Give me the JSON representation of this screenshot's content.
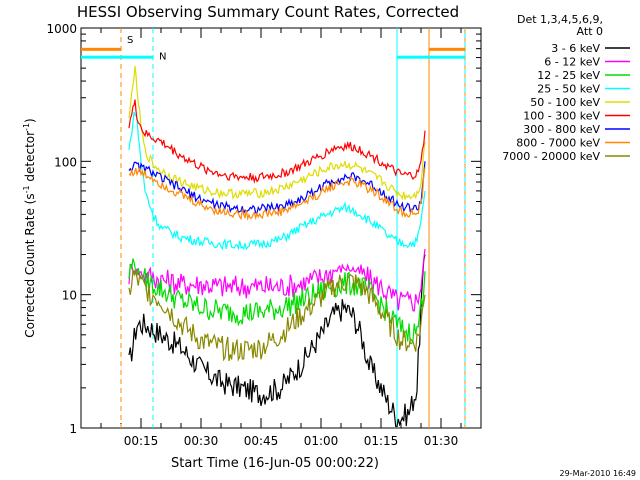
{
  "chart_data": {
    "type": "line",
    "title": "HESSI Observing Summary Count Rates, Corrected",
    "xlabel": "Start Time (16-Jun-05 00:00:22)",
    "ylabel_main": "Corrected Count Rate (s",
    "ylabel_sup1": "-1",
    "ylabel_mid": " detector",
    "ylabel_sup2": "-1",
    "ylabel_end": ")",
    "y_scale": "log",
    "ylim": [
      1,
      1000
    ],
    "xlim_minutes": [
      0,
      100
    ],
    "y_ticks": [
      "1",
      "10",
      "100",
      "1000"
    ],
    "x_ticks": [
      {
        "label": "00:15",
        "minute": 15
      },
      {
        "label": "00:30",
        "minute": 30
      },
      {
        "label": "00:45",
        "minute": 45
      },
      {
        "label": "01:00",
        "minute": 60
      },
      {
        "label": "01:15",
        "minute": 75
      },
      {
        "label": "01:30",
        "minute": 90
      }
    ],
    "legend_header": [
      "Det 1,3,4,5,6,9,",
      "Att 0"
    ],
    "legend_position": "right",
    "series": [
      {
        "name": "3 - 6 keV",
        "color": "#000000",
        "x": [
          12,
          14,
          16,
          20,
          25,
          30,
          35,
          40,
          45,
          50,
          55,
          60,
          63,
          66,
          68,
          70,
          72,
          75,
          77,
          79,
          80,
          82,
          84,
          85,
          86
        ],
        "y": [
          3,
          6,
          6,
          5,
          4,
          2.8,
          2.2,
          2,
          1.8,
          2,
          3,
          5,
          7,
          8,
          7,
          5,
          3,
          2,
          1.5,
          1.2,
          1.2,
          1.3,
          2,
          8,
          20
        ]
      },
      {
        "name": "6 - 12 keV",
        "color": "#ff00ff",
        "x": [
          12,
          13,
          14,
          16,
          20,
          25,
          30,
          35,
          40,
          45,
          50,
          55,
          60,
          63,
          66,
          68,
          70,
          72,
          75,
          77,
          79,
          80,
          82,
          84,
          85,
          86
        ],
        "y": [
          14,
          16,
          15,
          14,
          13,
          12,
          12,
          11.5,
          11.5,
          11.5,
          11.5,
          12,
          13.5,
          15,
          16,
          15.5,
          14.5,
          13,
          11.5,
          10,
          9,
          9,
          8.8,
          9,
          12,
          22
        ]
      },
      {
        "name": "12 - 25 keV",
        "color": "#00dd00",
        "x": [
          12,
          13,
          14,
          16,
          20,
          25,
          30,
          35,
          40,
          45,
          50,
          55,
          60,
          63,
          66,
          68,
          70,
          72,
          75,
          77,
          79,
          80,
          82,
          84,
          85,
          86
        ],
        "y": [
          14,
          18,
          15,
          13,
          11,
          9,
          8,
          7.5,
          7.3,
          7.4,
          8,
          9,
          10.5,
          11.5,
          12,
          12,
          11.5,
          10.5,
          8.5,
          7,
          6,
          5.5,
          5.2,
          5.3,
          8,
          15
        ]
      },
      {
        "name": "25 - 50 keV",
        "color": "#00ffff",
        "x": [
          12,
          13,
          13.5,
          14,
          15,
          16,
          18,
          20,
          25,
          30,
          35,
          40,
          45,
          50,
          55,
          60,
          63,
          66,
          68,
          70,
          72,
          75,
          77,
          79,
          80,
          82,
          84,
          85,
          86
        ],
        "y": [
          120,
          200,
          240,
          200,
          100,
          60,
          40,
          32,
          27,
          25,
          24,
          23.5,
          24,
          26,
          32,
          38,
          42,
          45,
          43,
          40,
          36,
          31,
          27,
          25,
          24.5,
          24,
          25,
          35,
          60
        ]
      },
      {
        "name": "50 - 100 keV",
        "color": "#dddd00",
        "x": [
          12,
          13,
          13.5,
          14,
          15,
          16,
          18,
          20,
          25,
          30,
          35,
          40,
          45,
          50,
          55,
          60,
          63,
          66,
          68,
          70,
          72,
          75,
          77,
          79,
          80,
          82,
          84,
          85,
          86
        ],
        "y": [
          200,
          400,
          480,
          350,
          180,
          120,
          95,
          85,
          70,
          62,
          58,
          57,
          58,
          62,
          72,
          85,
          92,
          95,
          93,
          88,
          80,
          72,
          64,
          58,
          56,
          55,
          57,
          70,
          140
        ]
      },
      {
        "name": "100 - 300 keV",
        "color": "#ff0000",
        "x": [
          12,
          13,
          13.5,
          14,
          15,
          16,
          18,
          20,
          25,
          30,
          35,
          40,
          45,
          50,
          55,
          60,
          63,
          66,
          68,
          70,
          72,
          75,
          77,
          79,
          80,
          82,
          84,
          85,
          86
        ],
        "y": [
          190,
          250,
          270,
          220,
          180,
          160,
          150,
          140,
          110,
          90,
          80,
          76,
          76,
          80,
          92,
          110,
          125,
          130,
          128,
          122,
          112,
          100,
          90,
          82,
          79,
          78,
          80,
          95,
          170
        ]
      },
      {
        "name": "300 - 800 keV",
        "color": "#0000ff",
        "x": [
          12,
          13,
          14,
          15,
          16,
          18,
          20,
          25,
          30,
          35,
          40,
          45,
          50,
          55,
          60,
          63,
          66,
          68,
          70,
          72,
          75,
          77,
          79,
          80,
          82,
          84,
          85,
          86
        ],
        "y": [
          88,
          92,
          92,
          90,
          88,
          82,
          75,
          62,
          52,
          46,
          44,
          44,
          46,
          52,
          64,
          72,
          76,
          76,
          73,
          68,
          60,
          54,
          48,
          46,
          45,
          44,
          50,
          100
        ]
      },
      {
        "name": "800 - 7000 keV",
        "color": "#ff8800",
        "x": [
          12,
          13,
          14,
          15,
          16,
          18,
          20,
          25,
          30,
          35,
          40,
          45,
          50,
          55,
          60,
          63,
          66,
          68,
          70,
          72,
          75,
          77,
          79,
          80,
          82,
          84,
          85,
          86
        ],
        "y": [
          80,
          84,
          84,
          82,
          80,
          75,
          68,
          56,
          47,
          42,
          40,
          40,
          42,
          48,
          58,
          66,
          70,
          70,
          67,
          62,
          55,
          49,
          44,
          42,
          41,
          40,
          46,
          90
        ]
      },
      {
        "name": "7000 - 20000 keV",
        "color": "#888800",
        "x": [
          12,
          13,
          14,
          16,
          20,
          25,
          30,
          35,
          40,
          45,
          50,
          55,
          60,
          63,
          66,
          68,
          70,
          72,
          75,
          77,
          79,
          80,
          82,
          84,
          85,
          86
        ],
        "y": [
          10,
          14,
          13,
          11,
          9,
          6,
          4.5,
          4,
          3.8,
          4,
          5,
          7,
          9.5,
          11.5,
          12.5,
          12.5,
          11.5,
          10,
          7.5,
          6,
          5,
          4.5,
          4.4,
          4.5,
          6,
          10
        ]
      }
    ],
    "annotations": {
      "saa_label": "S",
      "night_label": "N",
      "timestamp": "29-Mar-2010 16:49"
    }
  }
}
